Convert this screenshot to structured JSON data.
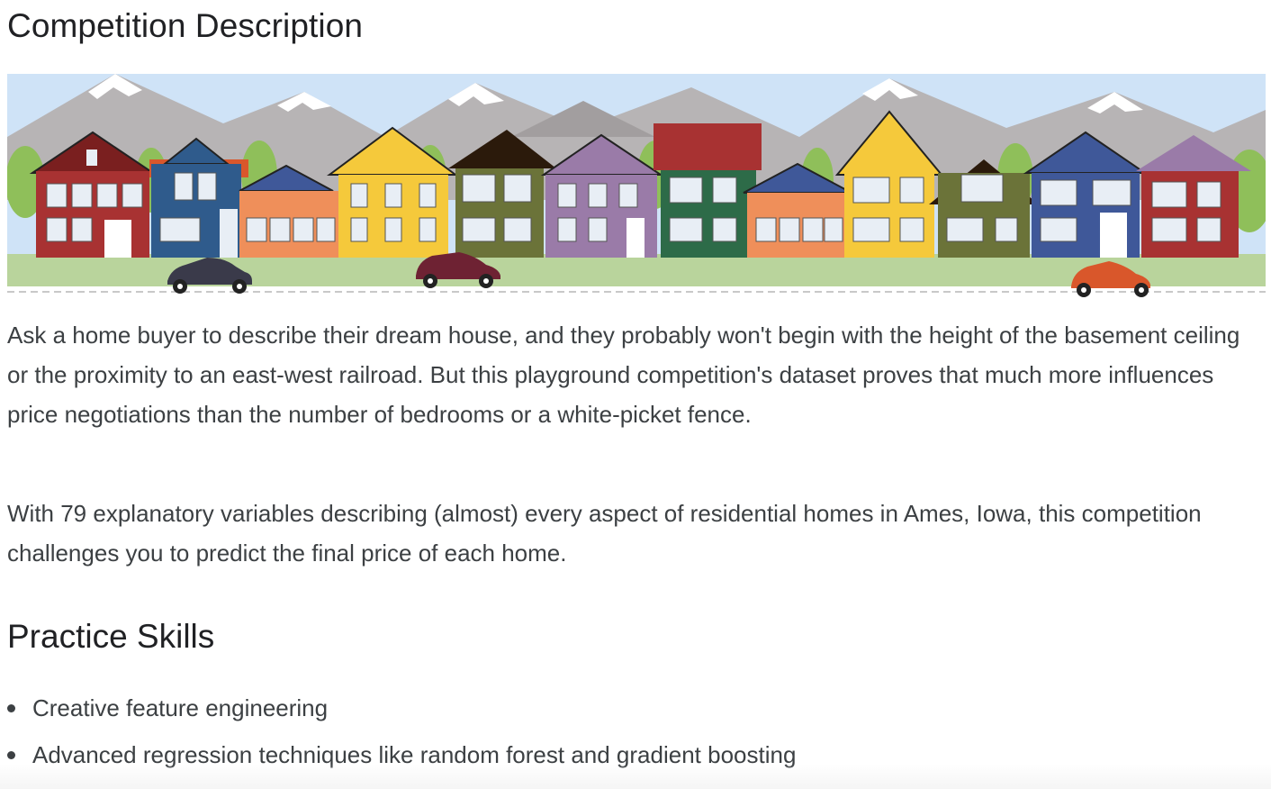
{
  "section": {
    "title": "Competition Description",
    "paragraphs": [
      "Ask a home buyer to describe their dream house, and they probably won't begin with the height of the basement ceiling or the proximity to an east-west railroad. But this playground competition's dataset proves that much more influences price negotiations than the number of bedrooms or a white-picket fence.",
      "With 79 explanatory variables describing (almost) every aspect of residential homes in Ames, Iowa, this competition challenges you to predict the final price of each home."
    ]
  },
  "skills": {
    "title": "Practice Skills",
    "items": [
      "Creative feature engineering",
      "Advanced regression techniques like random forest and gradient boosting"
    ]
  },
  "banner": {
    "icon": "house-illustration",
    "colors": {
      "sky": "#cfe3f7",
      "mountain": "#b4b2b3",
      "grass": "#b7d39a",
      "red": "#a83232",
      "blue": "#2f5b8c",
      "orange": "#ef8f5a",
      "yellow": "#f5c93b",
      "olive": "#6b7339",
      "purple": "#9a7ba8",
      "green": "#2d6b48"
    }
  }
}
